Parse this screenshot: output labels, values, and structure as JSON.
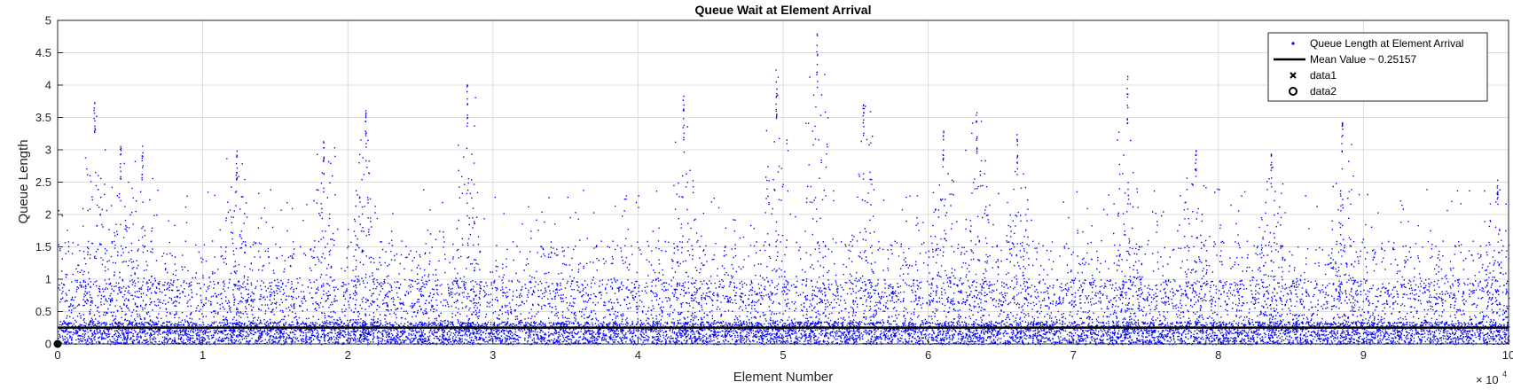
{
  "chart_data": {
    "type": "scatter",
    "title": "Queue Wait at Element Arrival",
    "xlabel": "Element Number",
    "ylabel": "Queue Length",
    "xlim": [
      0,
      100000
    ],
    "ylim": [
      0,
      5
    ],
    "x_tick_labels": [
      "0",
      "1",
      "2",
      "3",
      "4",
      "5",
      "6",
      "7",
      "8",
      "9",
      "10"
    ],
    "x_exponent": {
      "base": "× 10",
      "power": "4"
    },
    "y_tick_labels": [
      "0",
      "0.5",
      "1",
      "1.5",
      "2",
      "2.5",
      "3",
      "3.5",
      "4",
      "4.5",
      "5"
    ],
    "grid": true,
    "legend_placement": "top-right",
    "series": [
      {
        "name": "Queue Length at Element Arrival",
        "kind": "points",
        "color": "#0000ff",
        "n_points": 100000,
        "typical_range": [
          0,
          1.5
        ],
        "peaks": [
          {
            "x": 2500,
            "y": 3.8
          },
          {
            "x": 4300,
            "y": 3.1
          },
          {
            "x": 5800,
            "y": 3.1
          },
          {
            "x": 12300,
            "y": 3.1
          },
          {
            "x": 18300,
            "y": 3.2
          },
          {
            "x": 21200,
            "y": 3.65
          },
          {
            "x": 28200,
            "y": 4.05
          },
          {
            "x": 43100,
            "y": 3.85
          },
          {
            "x": 49500,
            "y": 4.25
          },
          {
            "x": 52300,
            "y": 4.8
          },
          {
            "x": 55500,
            "y": 3.75
          },
          {
            "x": 61000,
            "y": 3.3
          },
          {
            "x": 63300,
            "y": 3.6
          },
          {
            "x": 66100,
            "y": 3.3
          },
          {
            "x": 73700,
            "y": 4.15
          },
          {
            "x": 78400,
            "y": 3.1
          },
          {
            "x": 83600,
            "y": 2.95
          },
          {
            "x": 88500,
            "y": 3.45
          },
          {
            "x": 99200,
            "y": 2.6
          }
        ]
      },
      {
        "name": "Mean Value ~  0.25157",
        "kind": "hline",
        "value": 0.25157,
        "color": "#000000"
      },
      {
        "name": "data1",
        "kind": "marker-x",
        "color": "#000000"
      },
      {
        "name": "data2",
        "kind": "marker-o",
        "x": 0,
        "y": 0,
        "color": "#000000"
      }
    ]
  }
}
